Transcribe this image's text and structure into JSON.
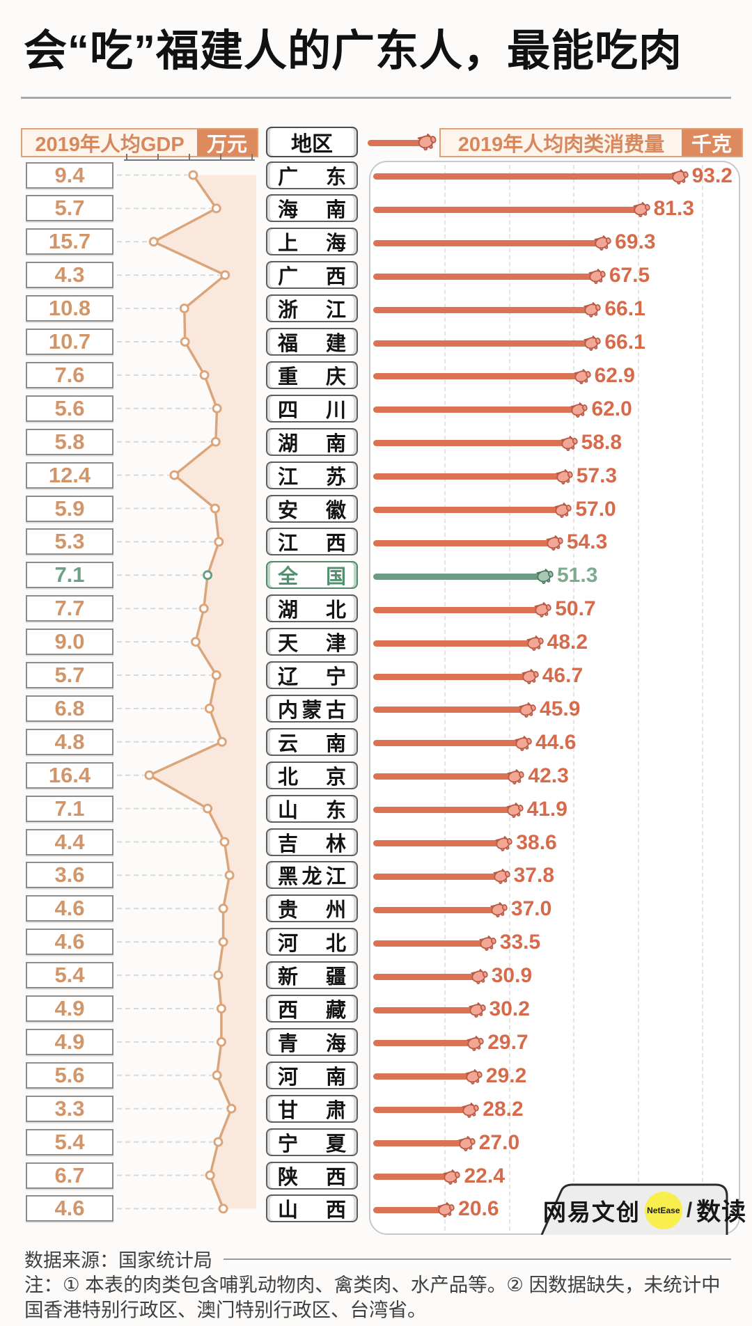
{
  "title": "会“吃”福建人的广东人，最能吃肉",
  "header": {
    "gdp_label": "2019年人均GDP",
    "gdp_unit": "万元",
    "region_label": "地区",
    "meat_label": "2019年人均肉类消费量",
    "meat_unit": "千克"
  },
  "chart_data": {
    "type": "bar",
    "title": "会“吃”福建人的广东人，最能吃肉",
    "categories": [
      "广东",
      "海南",
      "上海",
      "广西",
      "浙江",
      "福建",
      "重庆",
      "四川",
      "湖南",
      "江苏",
      "安徽",
      "江西",
      "全国",
      "湖北",
      "天津",
      "辽宁",
      "内蒙古",
      "云南",
      "北京",
      "山东",
      "吉林",
      "黑龙江",
      "贵州",
      "河北",
      "新疆",
      "西藏",
      "青海",
      "河南",
      "甘肃",
      "宁夏",
      "陕西",
      "山西"
    ],
    "series": [
      {
        "name": "2019年人均GDP（万元）",
        "type": "line",
        "values": [
          9.4,
          5.7,
          15.7,
          4.3,
          10.8,
          10.7,
          7.6,
          5.6,
          5.8,
          12.4,
          5.9,
          5.3,
          7.1,
          7.7,
          9.0,
          5.7,
          6.8,
          4.8,
          16.4,
          7.1,
          4.4,
          3.6,
          4.6,
          4.6,
          5.4,
          4.9,
          4.9,
          5.6,
          3.3,
          5.4,
          6.7,
          4.6
        ]
      },
      {
        "name": "2019年人均肉类消费量（千克）",
        "type": "bar",
        "values": [
          93.2,
          81.3,
          69.3,
          67.5,
          66.1,
          66.1,
          62.9,
          62.0,
          58.8,
          57.3,
          57.0,
          54.3,
          51.3,
          50.7,
          48.2,
          46.7,
          45.9,
          44.6,
          42.3,
          41.9,
          38.6,
          37.8,
          37.0,
          33.5,
          30.9,
          30.2,
          29.7,
          29.2,
          28.2,
          27.0,
          22.4,
          20.6
        ]
      }
    ],
    "highlight_category": "全国",
    "gdp_axis": {
      "min": 0,
      "max": 20,
      "ticks": [
        0,
        5,
        10,
        15,
        20
      ],
      "direction": "right-to-left"
    },
    "meat_axis": {
      "min": 0,
      "max": 100,
      "gridlines": [
        20,
        40,
        60,
        80,
        100
      ]
    },
    "legend_position": "top",
    "grid": true
  },
  "colors": {
    "bar_orange": "#dc7254",
    "value_orange": "#d66a4b",
    "gdp_value_tan": "#d2956a",
    "line_tan": "#dba57c",
    "area_fill": "#f9e3d6",
    "highlight_green": "#6b9c82",
    "highlight_green_text": "#7cab8f",
    "header_orange": "#dd8a5e",
    "pig_fill": "#f4a696",
    "pig_outline": "#b85a43"
  },
  "icons": {
    "pig": "pig-icon"
  },
  "logo": {
    "brand": "网易文创",
    "badge": "NetEase",
    "divider": "/",
    "product": "数读"
  },
  "footer": {
    "source": "数据来源：国家统计局",
    "note": "注：① 本表的肉类包含哺乳动物肉、禽类肉、水产品等。② 因数据缺失，未统计中国香港特别行政区、澳门特别行政区、台湾省。"
  }
}
